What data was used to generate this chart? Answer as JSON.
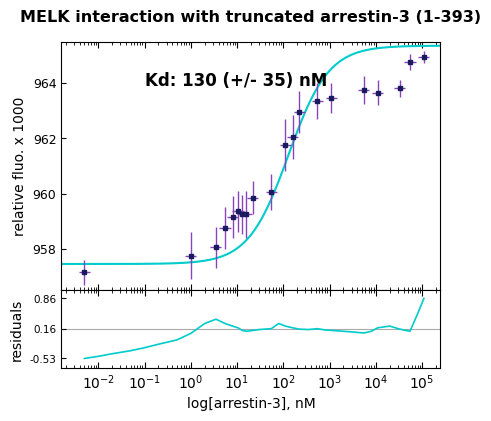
{
  "title": "MELK interaction with truncated arrestin-3 (1-393)",
  "xlabel": "log[arrestin-3], nM",
  "ylabel_main": "relative fluo. x 1000",
  "ylabel_resid": "residuals",
  "annotation": "Kd: 130 (+/- 35) nM",
  "main_ylim": [
    956.5,
    965.5
  ],
  "main_yticks": [
    958,
    960,
    962,
    964
  ],
  "resid_ylim": [
    -0.75,
    1.05
  ],
  "resid_yticks": [
    0.86,
    0.16,
    -0.53
  ],
  "resid_ytick_labels": [
    "0.86",
    "0.16",
    "-0.53"
  ],
  "xlim_low": -2.8,
  "xlim_high": 5.4,
  "data_x": [
    0.005,
    1.0,
    3.5,
    5.5,
    8.0,
    10.5,
    13.0,
    16.0,
    22.0,
    55.0,
    110.0,
    160.0,
    220.0,
    550.0,
    1100.0,
    5500.0,
    11000.0,
    33000.0,
    55000.0,
    110000.0
  ],
  "data_y": [
    957.15,
    957.75,
    958.05,
    958.75,
    959.15,
    959.35,
    959.25,
    959.25,
    959.85,
    960.05,
    961.75,
    962.05,
    962.95,
    963.35,
    963.45,
    963.75,
    963.65,
    963.8,
    964.75,
    964.95
  ],
  "data_yerr": [
    0.45,
    0.85,
    0.75,
    0.75,
    0.75,
    0.75,
    0.7,
    0.85,
    0.6,
    0.65,
    0.95,
    0.8,
    0.75,
    0.65,
    0.55,
    0.5,
    0.45,
    0.32,
    0.28,
    0.22
  ],
  "data_xerr_factor": 0.12,
  "marker_color": "#1a1a5e",
  "errorbar_color": "#8844bb",
  "fit_color": "#00cccc",
  "fit_linewidth": 1.5,
  "resid_line_color": "#00cccc",
  "resid_hline_color": "#aaaaaa",
  "resid_hline_y": 0.16,
  "background_color": "#ffffff",
  "Kd": 130,
  "Bmax": 7.9,
  "baseline": 957.45,
  "title_fontsize": 11.5,
  "label_fontsize": 10,
  "tick_fontsize": 9,
  "annot_fontsize": 12,
  "resid_x": [
    0.005,
    0.01,
    0.02,
    0.05,
    0.1,
    0.2,
    0.5,
    1.0,
    2.0,
    3.5,
    5.5,
    8.0,
    10.5,
    13.0,
    16.0,
    22.0,
    30.0,
    55.0,
    80.0,
    110.0,
    160.0,
    220.0,
    350.0,
    550.0,
    800.0,
    1100.0,
    2000.0,
    3500.0,
    5500.0,
    8000.0,
    11000.0,
    20000.0,
    33000.0,
    55000.0,
    80000.0,
    110000.0
  ],
  "resid_y": [
    -0.53,
    -0.48,
    -0.42,
    -0.35,
    -0.28,
    -0.2,
    -0.1,
    0.05,
    0.28,
    0.38,
    0.28,
    0.22,
    0.18,
    0.12,
    0.1,
    0.12,
    0.14,
    0.16,
    0.28,
    0.22,
    0.18,
    0.15,
    0.14,
    0.16,
    0.13,
    0.12,
    0.1,
    0.08,
    0.06,
    0.1,
    0.18,
    0.22,
    0.15,
    0.1,
    0.5,
    0.86
  ]
}
